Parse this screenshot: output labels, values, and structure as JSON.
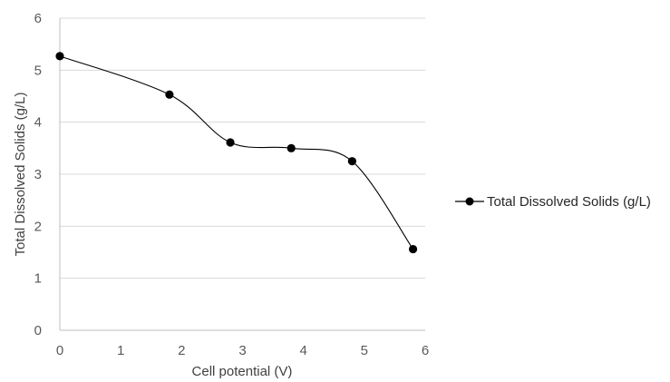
{
  "chart_data": {
    "type": "line",
    "smooth": true,
    "xlabel": "Cell potential (V)",
    "ylabel": "Total Dissolved Solids (g/L)",
    "xlim": [
      0,
      6
    ],
    "ylim": [
      0,
      6
    ],
    "xticks": [
      "0",
      "1",
      "2",
      "3",
      "4",
      "5",
      "6"
    ],
    "yticks": [
      "0",
      "1",
      "2",
      "3",
      "4",
      "5",
      "6"
    ],
    "grid": "horizontal",
    "legend_position": "right",
    "series": [
      {
        "name": "Total Dissolved Solids (g/L)",
        "color": "#000000",
        "x": [
          0,
          1.8,
          2.8,
          3.8,
          4.8,
          5.8
        ],
        "y": [
          5.27,
          4.53,
          3.61,
          3.5,
          3.25,
          1.56
        ]
      }
    ]
  }
}
